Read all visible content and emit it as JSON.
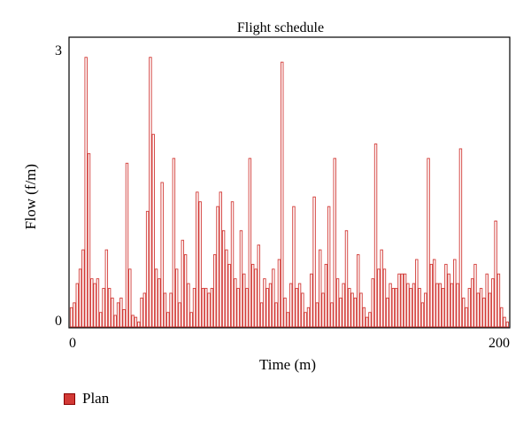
{
  "chart_data": {
    "type": "bar",
    "title": "Flight schedule",
    "xlabel": "Time (m)",
    "ylabel": "Flow (f/m)",
    "xlim": [
      0,
      200
    ],
    "ylim": [
      0,
      3
    ],
    "x_ticks": [
      "0",
      "200"
    ],
    "y_ticks": [
      "0",
      "3"
    ],
    "grid": false,
    "legend_position": "bottom-left",
    "series": [
      {
        "name": "Plan",
        "color": "#d23a36",
        "values": [
          0.2,
          0.25,
          0.45,
          0.6,
          0.8,
          2.8,
          1.8,
          0.5,
          0.45,
          0.5,
          0.15,
          0.4,
          0.8,
          0.4,
          0.3,
          0.12,
          0.25,
          0.3,
          0.18,
          1.7,
          0.6,
          0.12,
          0.1,
          0.05,
          0.3,
          0.35,
          1.2,
          2.8,
          2.0,
          0.6,
          0.5,
          1.5,
          0.35,
          0.15,
          0.35,
          1.75,
          0.6,
          0.25,
          0.9,
          0.75,
          0.45,
          0.15,
          0.4,
          1.4,
          1.3,
          0.4,
          0.4,
          0.35,
          0.4,
          0.75,
          1.25,
          1.4,
          1.0,
          0.8,
          0.65,
          1.3,
          0.5,
          0.4,
          1.0,
          0.55,
          0.4,
          1.75,
          0.65,
          0.6,
          0.85,
          0.25,
          0.5,
          0.4,
          0.45,
          0.6,
          0.25,
          0.7,
          2.75,
          0.3,
          0.15,
          0.45,
          1.25,
          0.4,
          0.45,
          0.35,
          0.15,
          0.2,
          0.55,
          1.35,
          0.25,
          0.8,
          0.35,
          0.65,
          1.25,
          0.25,
          1.75,
          0.5,
          0.3,
          0.45,
          1.0,
          0.4,
          0.35,
          0.3,
          0.75,
          0.35,
          0.2,
          0.1,
          0.15,
          0.5,
          1.9,
          0.6,
          0.8,
          0.6,
          0.3,
          0.45,
          0.4,
          0.4,
          0.55,
          0.55,
          0.55,
          0.45,
          0.4,
          0.45,
          0.7,
          0.4,
          0.25,
          0.35,
          1.75,
          0.65,
          0.7,
          0.45,
          0.45,
          0.4,
          0.65,
          0.55,
          0.45,
          0.7,
          0.45,
          1.85,
          0.3,
          0.2,
          0.4,
          0.5,
          0.65,
          0.35,
          0.4,
          0.3,
          0.55,
          0.35,
          0.5,
          1.1,
          0.55,
          0.2,
          0.1,
          0.05
        ]
      }
    ]
  },
  "legend": {
    "items": [
      {
        "label": "Plan",
        "color": "#d23a36"
      }
    ]
  }
}
